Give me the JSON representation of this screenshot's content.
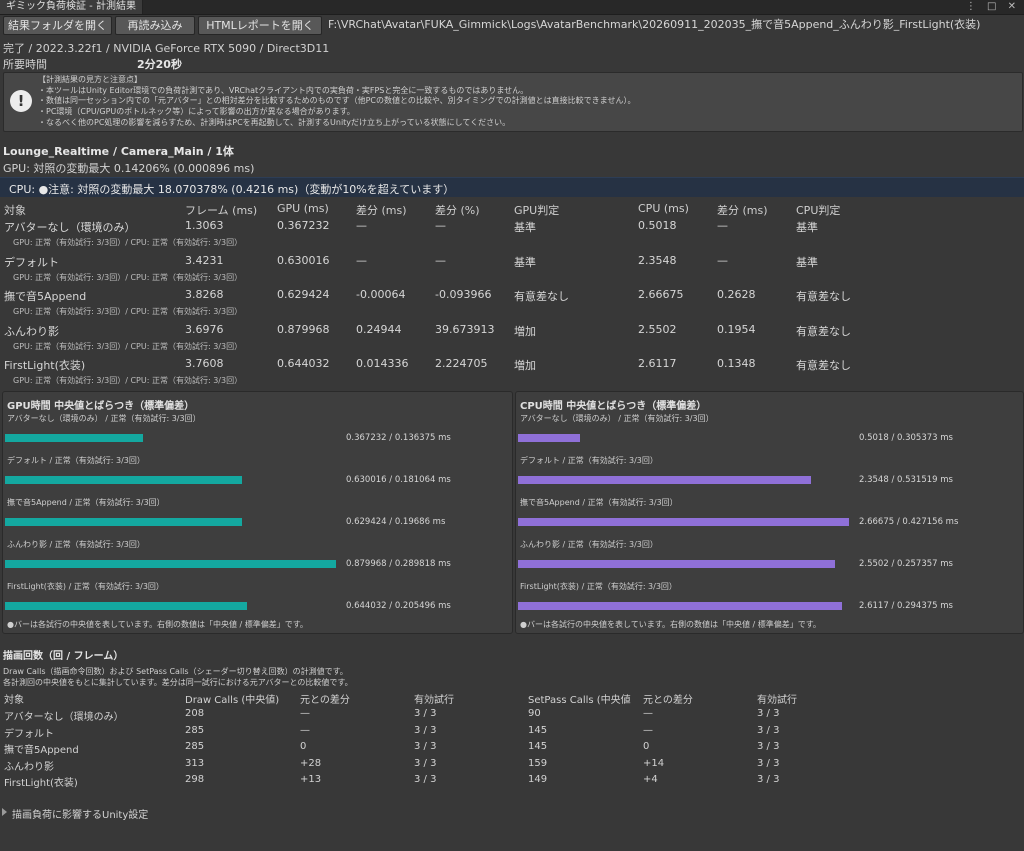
{
  "window": {
    "tab_title": "ギミック負荷検証 - 計測結果",
    "controls": "⋮ □ ✕"
  },
  "toolbar": {
    "open_folder": "結果フォルダを開く",
    "reload": "再読み込み",
    "open_html": "HTMLレポートを開く",
    "path": "F:\\VRChat\\Avatar\\FUKA_Gimmick\\Logs\\AvatarBenchmark\\20260911_202035_撫で音5Append_ふんわり影_FirstLight(衣装)"
  },
  "summary": {
    "status": "完了 / 2022.3.22f1 / NVIDIA GeForce RTX 5090 / Direct3D11",
    "time_label": "所要時間",
    "time_value": "2分20秒"
  },
  "notice": {
    "icon": "exclamation-icon",
    "lines": [
      "【計測結果の見方と注意点】",
      "・本ツールはUnity Editor環境での負荷計測であり、VRChatクライアント内での実負荷・実FPSと完全に一致するものではありません。",
      "・数値は同一セッション内での「元アバター」との相対差分を比較するためのものです（他PCの数値との比較や、別タイミングでの計測値とは直接比較できません）。",
      "・PC環境（CPU/GPUのボトルネック等）によって影響の出方が異なる場合があります。",
      "・なるべく他のPC処理の影響を減らすため、計測時はPCを再起動して、計測するUnityだけ立ち上がっている状態にしてください。"
    ]
  },
  "section": {
    "heading": "Lounge_Realtime / Camera_Main / 1体",
    "gpu_variation": "GPU: 対照の変動最大 0.14206% (0.000896 ms)",
    "cpu_warning": "CPU: ●注意: 対照の変動最大 18.070378% (0.4216 ms)（変動が10%を超えています）"
  },
  "table": {
    "headers": [
      "対象",
      "フレーム (ms)",
      "GPU (ms)",
      "差分 (ms)",
      "差分 (%)",
      "GPU判定",
      "CPU (ms)",
      "差分 (ms)",
      "CPU判定"
    ],
    "rows": [
      {
        "name": "アバターなし（環境のみ）",
        "frame": "1.3063",
        "gpu": "0.367232",
        "gpu_diff": "—",
        "gpu_pct": "—",
        "gpu_judge": "基準",
        "cpu": "0.5018",
        "cpu_diff": "—",
        "cpu_judge": "基準",
        "note": "GPU: 正常（有効試行: 3/3回）/ CPU: 正常（有効試行: 3/3回）"
      },
      {
        "name": "デフォルト",
        "frame": "3.4231",
        "gpu": "0.630016",
        "gpu_diff": "—",
        "gpu_pct": "—",
        "gpu_judge": "基準",
        "cpu": "2.3548",
        "cpu_diff": "—",
        "cpu_judge": "基準",
        "note": "GPU: 正常（有効試行: 3/3回）/ CPU: 正常（有効試行: 3/3回）"
      },
      {
        "name": "撫で音5Append",
        "frame": "3.8268",
        "gpu": "0.629424",
        "gpu_diff": "-0.00064",
        "gpu_pct": "-0.093966",
        "gpu_judge": "有意差なし",
        "cpu": "2.66675",
        "cpu_diff": "0.2628",
        "cpu_judge": "有意差なし",
        "note": "GPU: 正常（有効試行: 3/3回）/ CPU: 正常（有効試行: 3/3回）"
      },
      {
        "name": "ふんわり影",
        "frame": "3.6976",
        "gpu": "0.879968",
        "gpu_diff": "0.24944",
        "gpu_pct": "39.673913",
        "gpu_judge": "増加",
        "cpu": "2.5502",
        "cpu_diff": "0.1954",
        "cpu_judge": "有意差なし",
        "note": "GPU: 正常（有効試行: 3/3回）/ CPU: 正常（有効試行: 3/3回）"
      },
      {
        "name": "FirstLight(衣装)",
        "frame": "3.7608",
        "gpu": "0.644032",
        "gpu_diff": "0.014336",
        "gpu_pct": "2.224705",
        "gpu_judge": "増加",
        "cpu": "2.6117",
        "cpu_diff": "0.1348",
        "cpu_judge": "有意差なし",
        "note": "GPU: 正常（有効試行: 3/3回）/ CPU: 正常（有効試行: 3/3回）"
      }
    ]
  },
  "gpu_panel": {
    "title": "GPU時間 中央値とばらつき（標準偏差）",
    "color": "#14a8a0",
    "note": "●バーは各試行の中央値を表しています。右側の数値は「中央値 / 標準偏差」です。",
    "bars": [
      {
        "label": "アバターなし（環境のみ） / 正常（有効試行: 3/3回）",
        "value": 0.367232,
        "text": "0.367232 / 0.136375 ms"
      },
      {
        "label": "デフォルト / 正常（有効試行: 3/3回）",
        "value": 0.630016,
        "text": "0.630016 / 0.181064 ms"
      },
      {
        "label": "撫で音5Append / 正常（有効試行: 3/3回）",
        "value": 0.629424,
        "text": "0.629424 / 0.19686 ms"
      },
      {
        "label": "ふんわり影 / 正常（有効試行: 3/3回）",
        "value": 0.879968,
        "text": "0.879968 / 0.289818 ms"
      },
      {
        "label": "FirstLight(衣装) / 正常（有効試行: 3/3回）",
        "value": 0.644032,
        "text": "0.644032 / 0.205496 ms"
      }
    ]
  },
  "cpu_panel": {
    "title": "CPU時間 中央値とばらつき（標準偏差）",
    "color": "#8f70d8",
    "note": "●バーは各試行の中央値を表しています。右側の数値は「中央値 / 標準偏差」です。",
    "bars": [
      {
        "label": "アバターなし（環境のみ） / 正常（有効試行: 3/3回）",
        "value": 0.5018,
        "text": "0.5018 / 0.305373 ms"
      },
      {
        "label": "デフォルト / 正常（有効試行: 3/3回）",
        "value": 2.3548,
        "text": "2.3548 / 0.531519 ms"
      },
      {
        "label": "撫で音5Append / 正常（有効試行: 3/3回）",
        "value": 2.66675,
        "text": "2.66675 / 0.427156 ms"
      },
      {
        "label": "ふんわり影 / 正常（有効試行: 3/3回）",
        "value": 2.5502,
        "text": "2.5502 / 0.257357 ms"
      },
      {
        "label": "FirstLight(衣装) / 正常（有効試行: 3/3回）",
        "value": 2.6117,
        "text": "2.6117 / 0.294375 ms"
      }
    ]
  },
  "drawcalls": {
    "heading": "描画回数（回 / フレーム）",
    "desc1": "Draw Calls（描画命令回数）および SetPass Calls（シェーダー切り替え回数）の計測値です。",
    "desc2": "各計測回の中央値をもとに集計しています。差分は同一試行における元アバターとの比較値です。",
    "headers": [
      "対象",
      "Draw Calls (中央値)",
      "元との差分",
      "有効試行",
      "SetPass Calls (中央値",
      "元との差分",
      "有効試行"
    ],
    "rows": [
      {
        "name": "アバターなし（環境のみ）",
        "dc": "208",
        "dc_diff": "—",
        "dc_valid": "3 / 3",
        "sp": "90",
        "sp_diff": "—",
        "sp_valid": "3 / 3"
      },
      {
        "name": "デフォルト",
        "dc": "285",
        "dc_diff": "—",
        "dc_valid": "3 / 3",
        "sp": "145",
        "sp_diff": "—",
        "sp_valid": "3 / 3"
      },
      {
        "name": "撫で音5Append",
        "dc": "285",
        "dc_diff": "0",
        "dc_valid": "3 / 3",
        "sp": "145",
        "sp_diff": "0",
        "sp_valid": "3 / 3"
      },
      {
        "name": "ふんわり影",
        "dc": "313",
        "dc_diff": "+28",
        "dc_valid": "3 / 3",
        "sp": "159",
        "sp_diff": "+14",
        "sp_valid": "3 / 3"
      },
      {
        "name": "FirstLight(衣装)",
        "dc": "298",
        "dc_diff": "+13",
        "dc_valid": "3 / 3",
        "sp": "149",
        "sp_diff": "+4",
        "sp_valid": "3 / 3"
      }
    ]
  },
  "foldout": {
    "icon": "triangle-right-icon",
    "label": "描画負荷に影響するUnity設定"
  }
}
